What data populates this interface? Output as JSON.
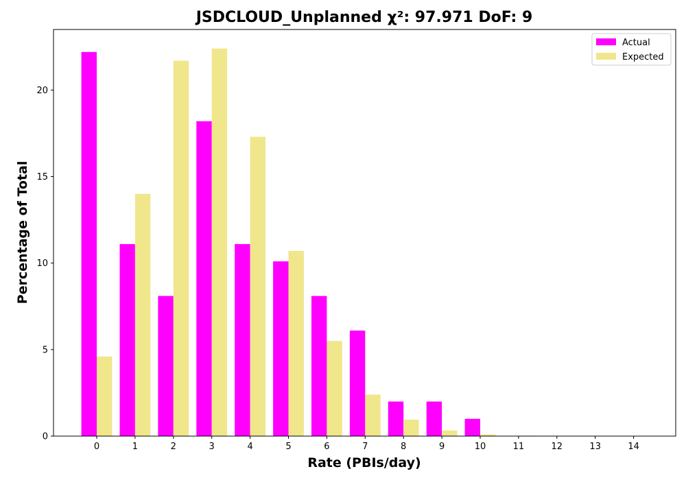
{
  "chart_data": {
    "type": "bar",
    "title": "JSDCLOUD_Unplanned χ²: 97.971 DoF: 9",
    "xlabel": "Rate (PBIs/day)",
    "ylabel": "Percentage of Total",
    "categories": [
      "0",
      "1",
      "2",
      "3",
      "4",
      "5",
      "6",
      "7",
      "8",
      "9",
      "10",
      "11",
      "12",
      "13",
      "14"
    ],
    "series": [
      {
        "name": "Actual",
        "color": "#ff00ff",
        "values": [
          22.2,
          11.1,
          8.1,
          18.2,
          11.1,
          10.1,
          8.1,
          6.1,
          2.0,
          2.0,
          1.0,
          0,
          0,
          0,
          0
        ]
      },
      {
        "name": "Expected",
        "color": "#f0e68c",
        "values": [
          4.6,
          14.0,
          21.7,
          22.4,
          17.3,
          10.7,
          5.5,
          2.4,
          0.95,
          0.33,
          0.1,
          0.03,
          0.01,
          0,
          0
        ]
      }
    ],
    "yticks": [
      0,
      5,
      10,
      15,
      20
    ],
    "ylim": [
      0,
      23.5
    ],
    "grid": false,
    "legend_position": "top-right"
  }
}
